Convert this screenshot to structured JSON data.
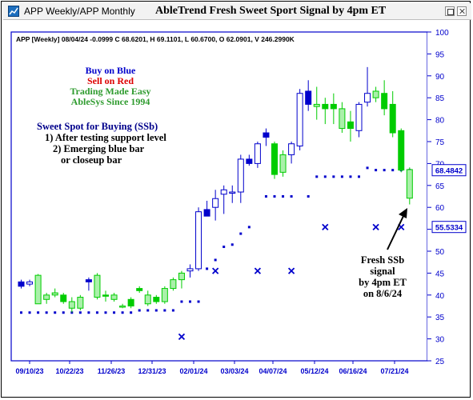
{
  "window": {
    "title": "APP Weekly/APP Monthly"
  },
  "chart_data": {
    "type": "candlestick",
    "title": "AbleTrend Fresh Sweet Sport Signal by 4pm ET",
    "info_line": "APP [Weekly] 08/04/24  -0.0999 C 68.6201, H 69.1101, L 60.6700, O 62.0901, V 246.2990K",
    "ylim": [
      25,
      100
    ],
    "y_ticks": [
      25,
      30,
      35,
      40,
      45,
      50,
      55,
      60,
      65,
      70,
      75,
      80,
      85,
      90,
      95,
      100
    ],
    "x_labels": [
      "09/10/23",
      "10/22/23",
      "11/26/23",
      "12/31/23",
      "02/01/24",
      "03/03/24",
      "04/07/24",
      "05/12/24",
      "06/16/24",
      "07/21/24"
    ],
    "price_tags": [
      {
        "value": "68.4842",
        "y": 68.48
      },
      {
        "value": "55.5334",
        "y": 55.53
      }
    ],
    "legend_lines": [
      {
        "text": "Buy on Blue",
        "color": "#0000cc"
      },
      {
        "text": "Sell on Red",
        "color": "#dd0000"
      },
      {
        "text": "Trading Made Easy",
        "color": "#2e9b2e"
      },
      {
        "text": "AbleSys Since 1994",
        "color": "#2e9b2e"
      }
    ],
    "ssb_lines": [
      "Sweet Spot for Buying (SSb)",
      "1) After testing support level",
      "2) Emerging blue bar",
      "or closeup bar"
    ],
    "callout_lines": [
      "Fresh SSb",
      "signal",
      "by 4pm ET",
      "on 8/6/24"
    ],
    "colors": {
      "blue": "#0000cc",
      "green": "#00cc00",
      "light_green": "#aaf0aa",
      "frame": "#0000cc"
    },
    "candles": [
      {
        "o": 42.0,
        "h": 43.5,
        "l": 41.5,
        "c": 43.0,
        "col": "blue",
        "fill": true
      },
      {
        "o": 42.5,
        "h": 43.5,
        "l": 42.0,
        "c": 43.0,
        "col": "blue",
        "fill": false
      },
      {
        "o": 44.5,
        "h": 44.8,
        "l": 38.0,
        "c": 38.0,
        "col": "green",
        "fill": false
      },
      {
        "o": 39.0,
        "h": 40.5,
        "l": 38.0,
        "c": 40.0,
        "col": "green",
        "fill": false
      },
      {
        "o": 40.5,
        "h": 41.5,
        "l": 39.5,
        "c": 40.0,
        "col": "green",
        "fill": false
      },
      {
        "o": 40.0,
        "h": 40.5,
        "l": 38.0,
        "c": 38.5,
        "col": "green",
        "fill": true
      },
      {
        "o": 38.5,
        "h": 39.5,
        "l": 36.0,
        "c": 37.0,
        "col": "green",
        "fill": false
      },
      {
        "o": 37.0,
        "h": 40.0,
        "l": 36.5,
        "c": 39.5,
        "col": "green",
        "fill": false
      },
      {
        "o": 43.0,
        "h": 44.0,
        "l": 41.0,
        "c": 43.5,
        "col": "blue",
        "fill": true
      },
      {
        "o": 44.5,
        "h": 45.0,
        "l": 39.0,
        "c": 39.5,
        "col": "green",
        "fill": false
      },
      {
        "o": 40.0,
        "h": 41.0,
        "l": 38.5,
        "c": 40.0,
        "col": "green",
        "fill": true
      },
      {
        "o": 40.0,
        "h": 40.5,
        "l": 38.5,
        "c": 39.0,
        "col": "green",
        "fill": false
      },
      {
        "o": 37.5,
        "h": 38.0,
        "l": 37.0,
        "c": 37.5,
        "col": "green",
        "fill": false
      },
      {
        "o": 37.5,
        "h": 39.5,
        "l": 37.0,
        "c": 39.0,
        "col": "green",
        "fill": true
      },
      {
        "o": 41.5,
        "h": 42.0,
        "l": 40.5,
        "c": 41.0,
        "col": "green",
        "fill": true
      },
      {
        "o": 40.0,
        "h": 41.0,
        "l": 37.5,
        "c": 38.0,
        "col": "green",
        "fill": false
      },
      {
        "o": 39.5,
        "h": 40.0,
        "l": 38.0,
        "c": 38.5,
        "col": "green",
        "fill": true
      },
      {
        "o": 38.5,
        "h": 42.0,
        "l": 38.0,
        "c": 41.5,
        "col": "green",
        "fill": false
      },
      {
        "o": 41.5,
        "h": 44.0,
        "l": 41.0,
        "c": 43.5,
        "col": "green",
        "fill": false
      },
      {
        "o": 43.5,
        "h": 45.5,
        "l": 41.5,
        "c": 45.0,
        "col": "green",
        "fill": false
      },
      {
        "o": 45.5,
        "h": 47.0,
        "l": 44.0,
        "c": 46.0,
        "col": "blue",
        "fill": false
      },
      {
        "o": 46.0,
        "h": 60.0,
        "l": 45.5,
        "c": 59.0,
        "col": "blue",
        "fill": false
      },
      {
        "o": 59.5,
        "h": 61.5,
        "l": 58.0,
        "c": 58.0,
        "col": "blue",
        "fill": true
      },
      {
        "o": 60.0,
        "h": 64.0,
        "l": 57.0,
        "c": 62.0,
        "col": "blue",
        "fill": false
      },
      {
        "o": 63.0,
        "h": 65.0,
        "l": 58.5,
        "c": 64.0,
        "col": "blue",
        "fill": false
      },
      {
        "o": 63.5,
        "h": 65.0,
        "l": 61.0,
        "c": 63.5,
        "col": "blue",
        "fill": false
      },
      {
        "o": 63.5,
        "h": 72.0,
        "l": 61.0,
        "c": 71.0,
        "col": "blue",
        "fill": false
      },
      {
        "o": 71.0,
        "h": 72.0,
        "l": 69.5,
        "c": 70.0,
        "col": "blue",
        "fill": true
      },
      {
        "o": 70.0,
        "h": 75.0,
        "l": 69.0,
        "c": 74.5,
        "col": "blue",
        "fill": false
      },
      {
        "o": 76.0,
        "h": 78.0,
        "l": 74.0,
        "c": 77.0,
        "col": "blue",
        "fill": true
      },
      {
        "o": 74.5,
        "h": 75.0,
        "l": 66.5,
        "c": 67.5,
        "col": "green",
        "fill": true
      },
      {
        "o": 68.0,
        "h": 73.0,
        "l": 67.0,
        "c": 72.0,
        "col": "green",
        "fill": false
      },
      {
        "o": 72.0,
        "h": 75.0,
        "l": 70.0,
        "c": 74.5,
        "col": "blue",
        "fill": false
      },
      {
        "o": 74.0,
        "h": 87.0,
        "l": 73.0,
        "c": 86.0,
        "col": "blue",
        "fill": false
      },
      {
        "o": 86.5,
        "h": 89.0,
        "l": 82.0,
        "c": 83.5,
        "col": "blue",
        "fill": true
      },
      {
        "o": 83.5,
        "h": 87.5,
        "l": 80.0,
        "c": 83.0,
        "col": "green",
        "fill": false
      },
      {
        "o": 82.5,
        "h": 85.0,
        "l": 79.0,
        "c": 83.5,
        "col": "green",
        "fill": true
      },
      {
        "o": 83.5,
        "h": 86.0,
        "l": 79.0,
        "c": 82.5,
        "col": "green",
        "fill": true
      },
      {
        "o": 82.5,
        "h": 84.0,
        "l": 77.0,
        "c": 78.0,
        "col": "green",
        "fill": false
      },
      {
        "o": 78.0,
        "h": 82.0,
        "l": 75.0,
        "c": 79.5,
        "col": "green",
        "fill": true
      },
      {
        "o": 77.5,
        "h": 84.0,
        "l": 76.0,
        "c": 83.5,
        "col": "blue",
        "fill": false
      },
      {
        "o": 84.0,
        "h": 92.0,
        "l": 83.0,
        "c": 86.0,
        "col": "blue",
        "fill": false
      },
      {
        "o": 86.5,
        "h": 87.5,
        "l": 84.0,
        "c": 85.0,
        "col": "green",
        "fill": false
      },
      {
        "o": 86.0,
        "h": 89.0,
        "l": 81.0,
        "c": 82.5,
        "col": "green",
        "fill": true
      },
      {
        "o": 83.5,
        "h": 86.5,
        "l": 76.0,
        "c": 77.0,
        "col": "green",
        "fill": true
      },
      {
        "o": 77.5,
        "h": 78.0,
        "l": 68.0,
        "c": 68.5,
        "col": "green",
        "fill": true
      },
      {
        "o": 62.09,
        "h": 69.11,
        "l": 60.67,
        "c": 68.62,
        "col": "green",
        "fill": false
      }
    ],
    "support_dots": [
      [
        0,
        36.0
      ],
      [
        1,
        36.0
      ],
      [
        2,
        36.0
      ],
      [
        3,
        36.0
      ],
      [
        4,
        36.0
      ],
      [
        5,
        36.0
      ],
      [
        6,
        36.0
      ],
      [
        7,
        36.0
      ],
      [
        8,
        36.0
      ],
      [
        9,
        36.0
      ],
      [
        10,
        36.0
      ],
      [
        11,
        36.0
      ],
      [
        12,
        36.0
      ],
      [
        13,
        36.0
      ],
      [
        14,
        36.5
      ],
      [
        15,
        36.5
      ],
      [
        16,
        36.5
      ],
      [
        17,
        36.5
      ],
      [
        18,
        36.5
      ],
      [
        19,
        38.5
      ],
      [
        20,
        38.5
      ],
      [
        21,
        38.5
      ],
      [
        22,
        46.0
      ],
      [
        23,
        48.0
      ],
      [
        24,
        51.0
      ],
      [
        25,
        51.5
      ],
      [
        26,
        54.0
      ],
      [
        27,
        55.5
      ],
      [
        29,
        62.5
      ],
      [
        30,
        62.5
      ],
      [
        31,
        62.5
      ],
      [
        32,
        62.5
      ],
      [
        34,
        62.5
      ],
      [
        35,
        67.0
      ],
      [
        36,
        67.0
      ],
      [
        37,
        67.0
      ],
      [
        38,
        67.0
      ],
      [
        39,
        67.0
      ],
      [
        40,
        67.0
      ],
      [
        41,
        69.0
      ],
      [
        42,
        68.5
      ],
      [
        43,
        68.5
      ],
      [
        44,
        68.5
      ],
      [
        45,
        68.5
      ],
      [
        46,
        68.5
      ]
    ],
    "resistance_marks": [
      [
        19,
        30.5
      ],
      [
        23,
        45.5
      ],
      [
        28,
        45.5
      ],
      [
        32,
        45.5
      ],
      [
        36,
        55.5
      ],
      [
        42,
        55.5
      ],
      [
        45,
        55.5
      ]
    ]
  }
}
